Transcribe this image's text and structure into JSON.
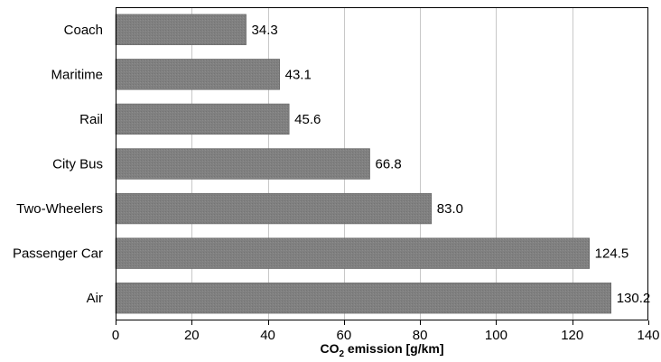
{
  "chart_data": {
    "type": "bar",
    "orientation": "horizontal",
    "categories": [
      "Coach",
      "Maritime",
      "Rail",
      "City Bus",
      "Two-Wheelers",
      "Passenger Car",
      "Air"
    ],
    "values": [
      34.3,
      43.1,
      45.6,
      66.8,
      83.0,
      124.5,
      130.2
    ],
    "data_labels": [
      "34.3",
      "43.1",
      "45.6",
      "66.8",
      "83.0",
      "124.5",
      "130.2"
    ],
    "xlim": [
      0,
      140
    ],
    "xticks": [
      0,
      20,
      40,
      60,
      80,
      100,
      120,
      140
    ],
    "xlabel_main": "CO",
    "xlabel_sub": "2",
    "xlabel_rest": " emission [g/km]",
    "ylabel": "",
    "title": "",
    "grid": "vertical",
    "legend": "none",
    "colors": {
      "bar": "#808080",
      "bar_stroke": "#5f5f5f",
      "grid": "#c8c8c8",
      "frame": "#000000"
    }
  }
}
